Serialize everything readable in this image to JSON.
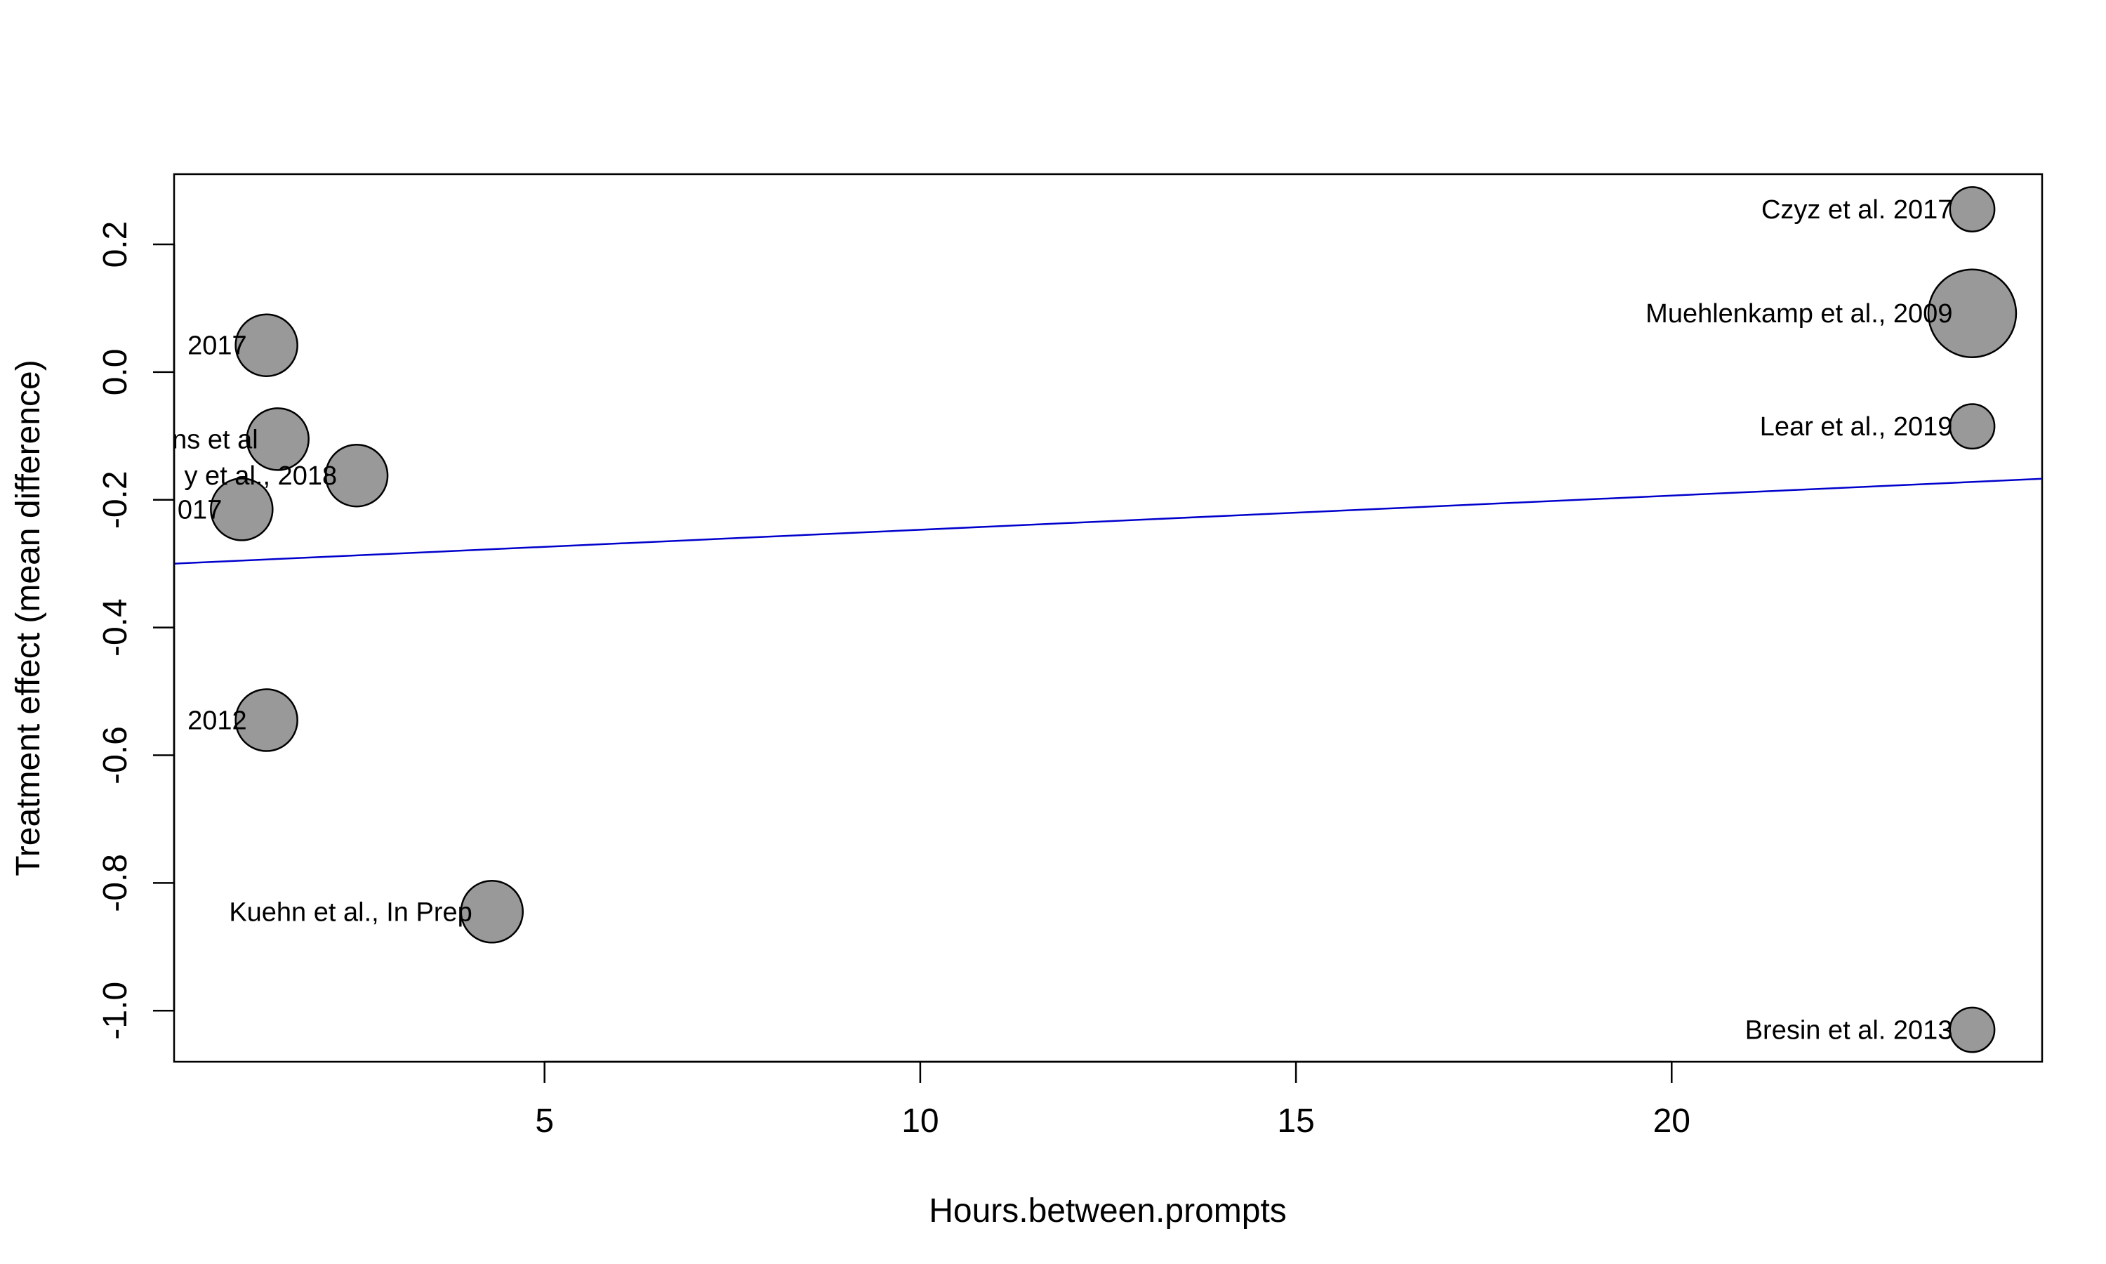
{
  "chart_data": {
    "type": "scatter",
    "title": "",
    "xlabel": "Hours.between.prompts",
    "ylabel": "Treatment effect (mean difference)",
    "xlim": [
      0.07,
      24.93
    ],
    "ylim": [
      -1.08,
      0.31
    ],
    "x_ticks": [
      5,
      10,
      15,
      20
    ],
    "x_tick_labels": [
      "5",
      "10",
      "15",
      "20"
    ],
    "y_ticks": [
      -1.0,
      -0.8,
      -0.6,
      -0.4,
      -0.2,
      0.0,
      0.2
    ],
    "y_tick_labels": [
      "-1.0",
      "-0.8",
      "-0.6",
      "-0.4",
      "-0.2",
      "0.0",
      "0.2"
    ],
    "grid": false,
    "legend": "none",
    "points": [
      {
        "label": "2017",
        "x": 1.3,
        "y": 0.042,
        "size": 1.0
      },
      {
        "label": "ns et al",
        "x": 1.45,
        "y": -0.105,
        "size": 1.0
      },
      {
        "label": "y et al., 2018",
        "x": 2.5,
        "y": -0.162,
        "size": 1.0
      },
      {
        "label": "017",
        "x": 0.97,
        "y": -0.215,
        "size": 1.0
      },
      {
        "label": "2012",
        "x": 1.3,
        "y": -0.545,
        "size": 1.0
      },
      {
        "label": "Kuehn et al., In Prep",
        "x": 4.3,
        "y": -0.845,
        "size": 1.0
      },
      {
        "label": "Czyz et al. 2017",
        "x": 24.0,
        "y": 0.255,
        "size": 0.72
      },
      {
        "label": "Muehlenkamp et al., 2009",
        "x": 24.0,
        "y": 0.092,
        "size": 1.42
      },
      {
        "label": "Lear et al., 2019",
        "x": 24.0,
        "y": -0.085,
        "size": 0.72
      },
      {
        "label": "Bresin et al. 2013",
        "x": 24.0,
        "y": -1.03,
        "size": 0.72
      }
    ],
    "regression_line": {
      "x": [
        0.07,
        24.93
      ],
      "y": [
        -0.3,
        -0.167
      ]
    },
    "colors": {
      "point_fill": "#999999",
      "point_stroke": "#000000",
      "line": "#0000cc"
    }
  }
}
